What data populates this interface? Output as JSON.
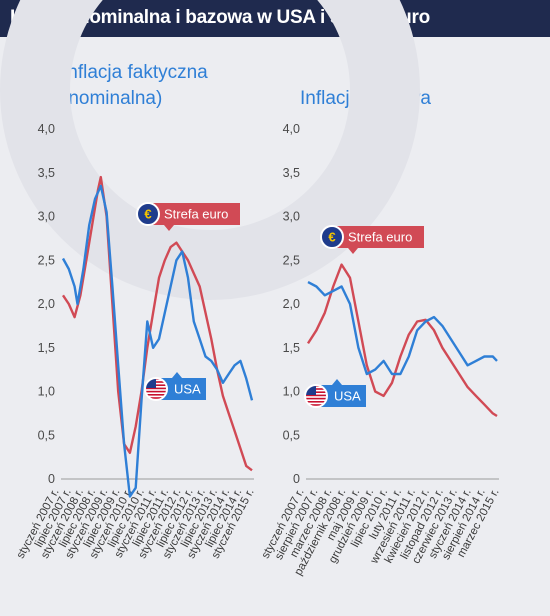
{
  "title": "Inflacja nominalna i bazowa w USA i strefie euro",
  "colors": {
    "usa": "#2f7fd6",
    "euro": "#d14a55",
    "header": "#1f2a4e",
    "title": "#2f7fd6"
  },
  "chart_data": [
    {
      "type": "line",
      "title": "Inflacja faktyczna (nominalna)",
      "ylim": [
        0,
        4
      ],
      "yticks": [
        "0",
        "0,5",
        "1,0",
        "1,5",
        "2,0",
        "2,5",
        "3,0",
        "3,5",
        "4,0"
      ],
      "ytick_values": [
        0,
        0.5,
        1,
        1.5,
        2,
        2.5,
        3,
        3.5,
        4
      ],
      "x_count": 100,
      "xticks": [
        "styczeń 2007 r.",
        "lipiec 2007 r.",
        "styczeń 2008 r.",
        "lipiec 2008 r.",
        "styczeń 2009 r.",
        "lipiec 2009 r.",
        "styczeń 2010 r.",
        "lipiec 2010 r.",
        "styczeń 2011 r.",
        "lipiec 2011 r.",
        "styczeń 2012 r.",
        "lipiec 2012 r.",
        "styczeń 2013 r.",
        "lipiec 2013 r.",
        "styczeń 2014 r.",
        "lipiec 2014 r.",
        "styczeń 2015 r."
      ],
      "xtick_index": [
        0,
        6,
        12,
        18,
        24,
        30,
        36,
        42,
        48,
        54,
        60,
        66,
        72,
        78,
        84,
        90,
        96
      ],
      "series": [
        {
          "name": "USA",
          "color": "#2f7fd6",
          "points": [
            [
              0,
              2.52
            ],
            [
              2,
              2.4
            ],
            [
              4,
              2.2
            ],
            [
              5,
              2.0
            ],
            [
              7,
              2.4
            ],
            [
              9,
              2.9
            ],
            [
              11,
              3.2
            ],
            [
              13,
              3.35
            ],
            [
              15,
              3.05
            ],
            [
              17,
              2.2
            ],
            [
              19,
              1.3
            ],
            [
              21,
              0.4
            ],
            [
              23,
              -0.2
            ],
            [
              25,
              -0.1
            ],
            [
              27,
              0.9
            ],
            [
              29,
              1.8
            ],
            [
              31,
              1.5
            ],
            [
              33,
              1.6
            ],
            [
              35,
              1.9
            ],
            [
              37,
              2.2
            ],
            [
              39,
              2.5
            ],
            [
              41,
              2.6
            ],
            [
              43,
              2.3
            ],
            [
              45,
              1.8
            ],
            [
              47,
              1.6
            ],
            [
              49,
              1.4
            ],
            [
              51,
              1.35
            ],
            [
              53,
              1.25
            ],
            [
              55,
              1.1
            ],
            [
              57,
              1.2
            ],
            [
              59,
              1.3
            ],
            [
              61,
              1.35
            ],
            [
              63,
              1.15
            ],
            [
              65,
              0.9
            ]
          ]
        },
        {
          "name": "Strefa euro",
          "color": "#d14a55",
          "points": [
            [
              0,
              2.1
            ],
            [
              2,
              2.0
            ],
            [
              4,
              1.85
            ],
            [
              6,
              2.1
            ],
            [
              8,
              2.5
            ],
            [
              10,
              2.9
            ],
            [
              12,
              3.3
            ],
            [
              13,
              3.45
            ],
            [
              15,
              3.0
            ],
            [
              17,
              2.0
            ],
            [
              19,
              1.0
            ],
            [
              21,
              0.4
            ],
            [
              23,
              0.3
            ],
            [
              25,
              0.6
            ],
            [
              27,
              1.0
            ],
            [
              29,
              1.5
            ],
            [
              31,
              1.9
            ],
            [
              33,
              2.3
            ],
            [
              35,
              2.5
            ],
            [
              37,
              2.65
            ],
            [
              39,
              2.7
            ],
            [
              41,
              2.6
            ],
            [
              43,
              2.5
            ],
            [
              45,
              2.35
            ],
            [
              47,
              2.2
            ],
            [
              49,
              1.9
            ],
            [
              51,
              1.6
            ],
            [
              53,
              1.25
            ],
            [
              55,
              0.95
            ],
            [
              57,
              0.75
            ],
            [
              59,
              0.55
            ],
            [
              61,
              0.35
            ],
            [
              63,
              0.15
            ],
            [
              65,
              0.1
            ]
          ]
        }
      ],
      "series_x_max": 65
    },
    {
      "type": "line",
      "title": "Inflacja bazowa",
      "ylim": [
        0,
        4
      ],
      "yticks": [
        "0",
        "0,5",
        "1,0",
        "1,5",
        "2,0",
        "2,5",
        "3,0",
        "3,5",
        "4,0"
      ],
      "ytick_values": [
        0,
        0.5,
        1,
        1.5,
        2,
        2.5,
        3,
        3.5,
        4
      ],
      "xticks": [
        "styczeń 2007 r.",
        "sierpień 2007 r.",
        "marzec 2008 r.",
        "październik 2008 r.",
        "maj 2009 r.",
        "grudzień 2009 r.",
        "lipiec 2010 r.",
        "luty 2011 r.",
        "wrzesień 2011 r.",
        "kwiecień 2012 r.",
        "listopad 2012 r.",
        "czerwiec 2013 r.",
        "styczeń 2014 r.",
        "sierpień 2014 r.",
        "marzec 2015 r."
      ],
      "series": [
        {
          "name": "USA",
          "color": "#2f7fd6",
          "points": [
            [
              0,
              2.25
            ],
            [
              2,
              2.2
            ],
            [
              4,
              2.1
            ],
            [
              6,
              2.15
            ],
            [
              8,
              2.2
            ],
            [
              10,
              2.0
            ],
            [
              12,
              1.5
            ],
            [
              14,
              1.2
            ],
            [
              16,
              1.25
            ],
            [
              18,
              1.35
            ],
            [
              20,
              1.2
            ],
            [
              22,
              1.2
            ],
            [
              24,
              1.4
            ],
            [
              26,
              1.7
            ],
            [
              28,
              1.8
            ],
            [
              30,
              1.85
            ],
            [
              32,
              1.75
            ],
            [
              34,
              1.6
            ],
            [
              36,
              1.45
            ],
            [
              38,
              1.3
            ],
            [
              40,
              1.35
            ],
            [
              42,
              1.4
            ],
            [
              44,
              1.4
            ],
            [
              45,
              1.35
            ]
          ]
        },
        {
          "name": "Strefa euro",
          "color": "#d14a55",
          "points": [
            [
              0,
              1.55
            ],
            [
              2,
              1.7
            ],
            [
              4,
              1.9
            ],
            [
              6,
              2.2
            ],
            [
              8,
              2.45
            ],
            [
              10,
              2.3
            ],
            [
              12,
              1.8
            ],
            [
              14,
              1.3
            ],
            [
              16,
              1.0
            ],
            [
              18,
              0.95
            ],
            [
              20,
              1.1
            ],
            [
              22,
              1.4
            ],
            [
              24,
              1.65
            ],
            [
              26,
              1.8
            ],
            [
              28,
              1.82
            ],
            [
              30,
              1.7
            ],
            [
              32,
              1.5
            ],
            [
              34,
              1.35
            ],
            [
              36,
              1.2
            ],
            [
              38,
              1.05
            ],
            [
              40,
              0.95
            ],
            [
              42,
              0.85
            ],
            [
              44,
              0.75
            ],
            [
              45,
              0.72
            ]
          ]
        }
      ],
      "series_x_max": 45
    }
  ],
  "labels": {
    "left_title": "Inflacja faktyczna (nominalna)",
    "right_title": "Inflacja bazowa",
    "euro_tag": "Strefa euro",
    "usa_tag": "USA",
    "euro_symbol": "€"
  }
}
